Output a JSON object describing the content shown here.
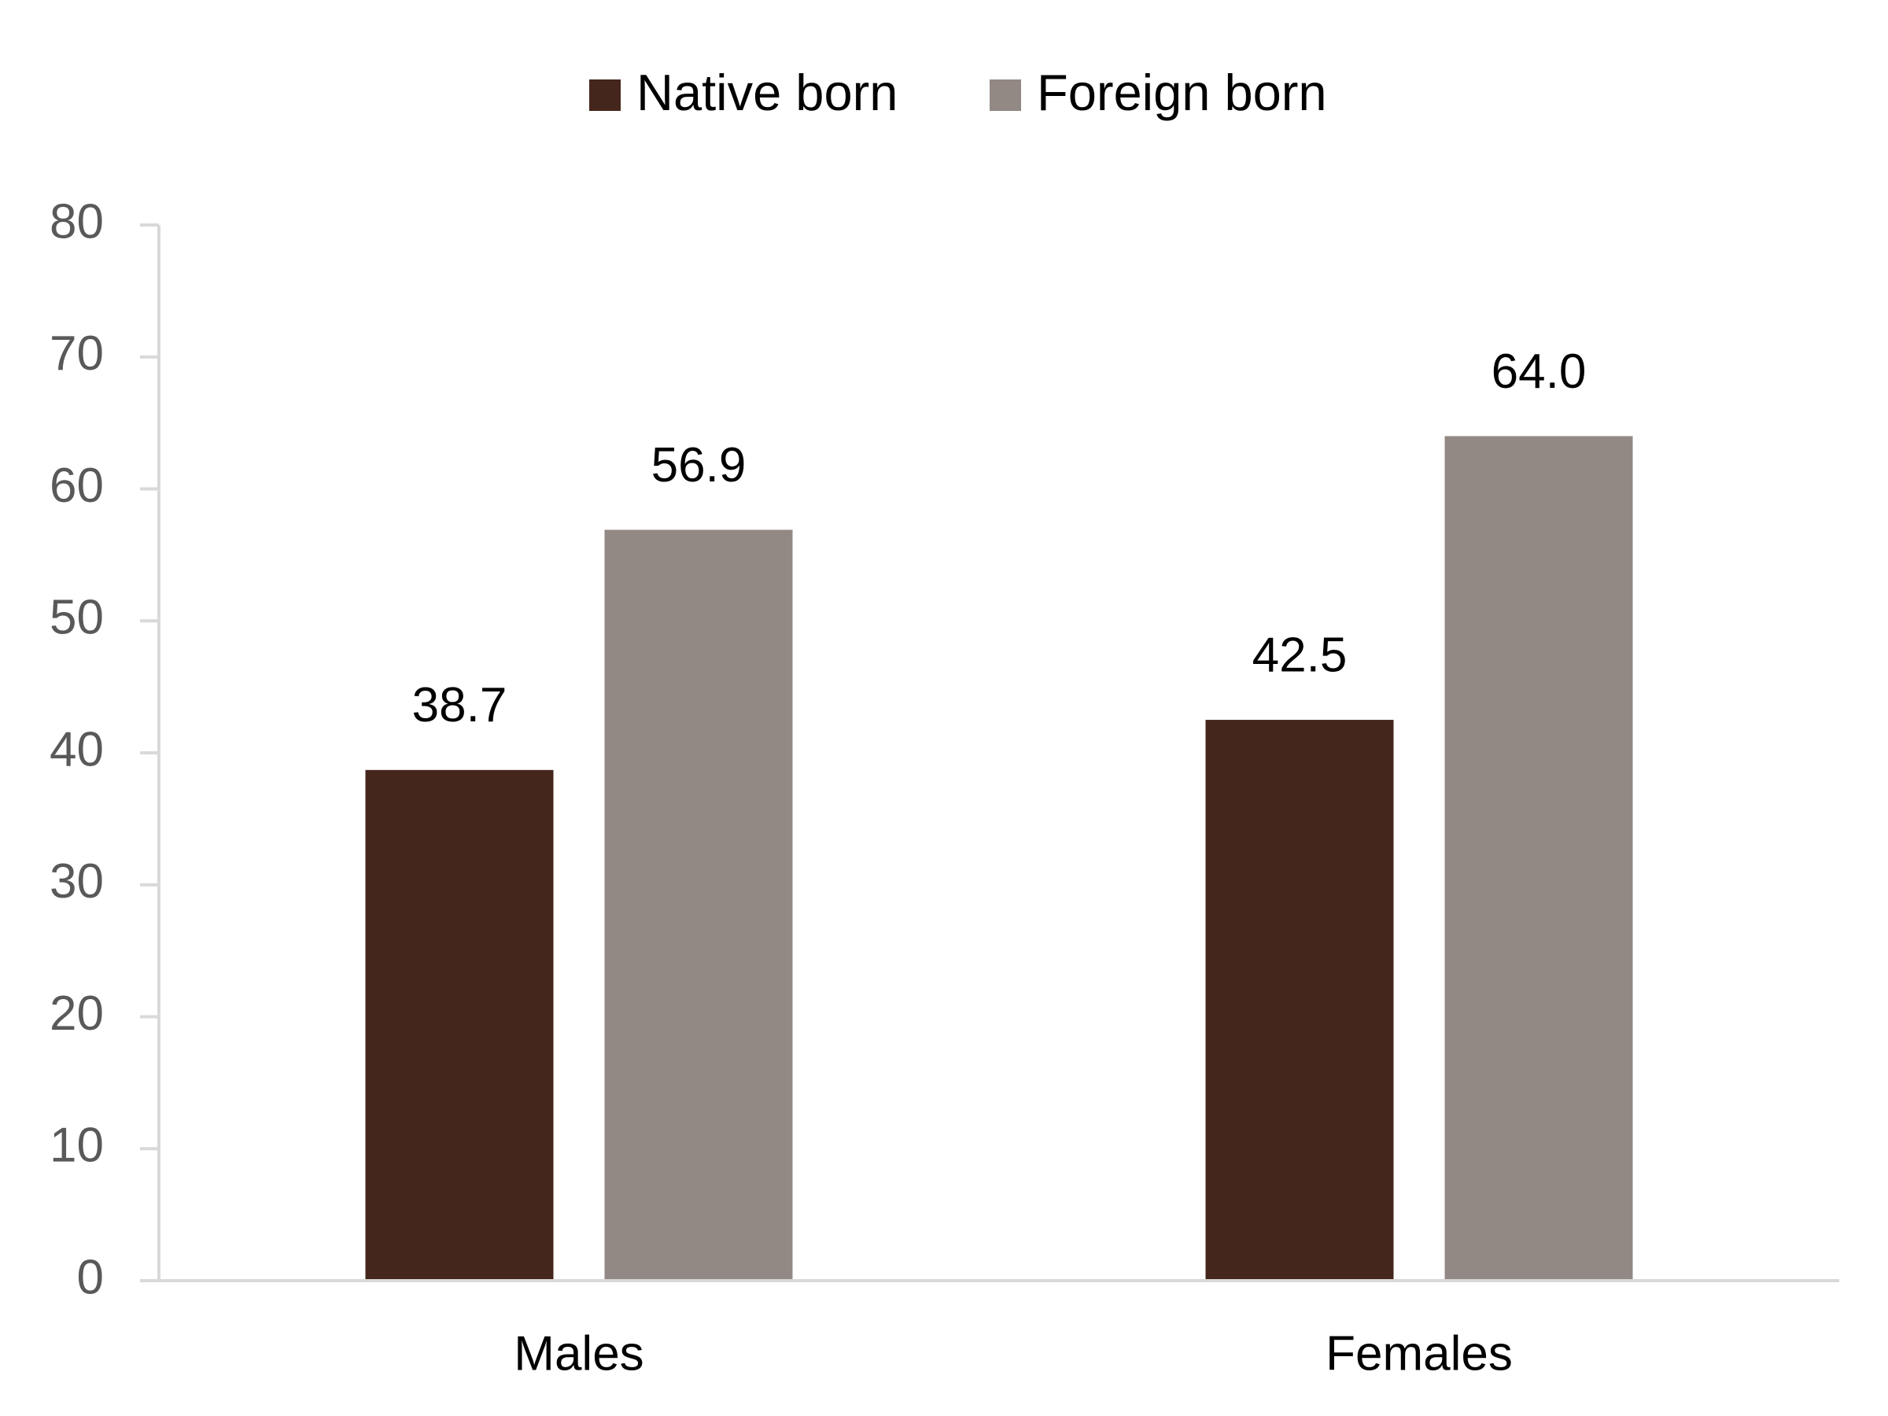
{
  "chart_data": {
    "type": "bar",
    "categories": [
      "Males",
      "Females"
    ],
    "series": [
      {
        "name": "Native born",
        "color": "#45261c",
        "values": [
          38.7,
          42.5
        ],
        "value_labels": [
          "38.7",
          "42.5"
        ]
      },
      {
        "name": "Foreign born",
        "color": "#928884",
        "values": [
          56.9,
          64.0
        ],
        "value_labels": [
          "56.9",
          "64.0"
        ]
      }
    ],
    "ylim": [
      0,
      80
    ],
    "yticks": [
      0,
      10,
      20,
      30,
      40,
      50,
      60,
      70,
      80
    ],
    "grid": false,
    "legend": "top"
  }
}
